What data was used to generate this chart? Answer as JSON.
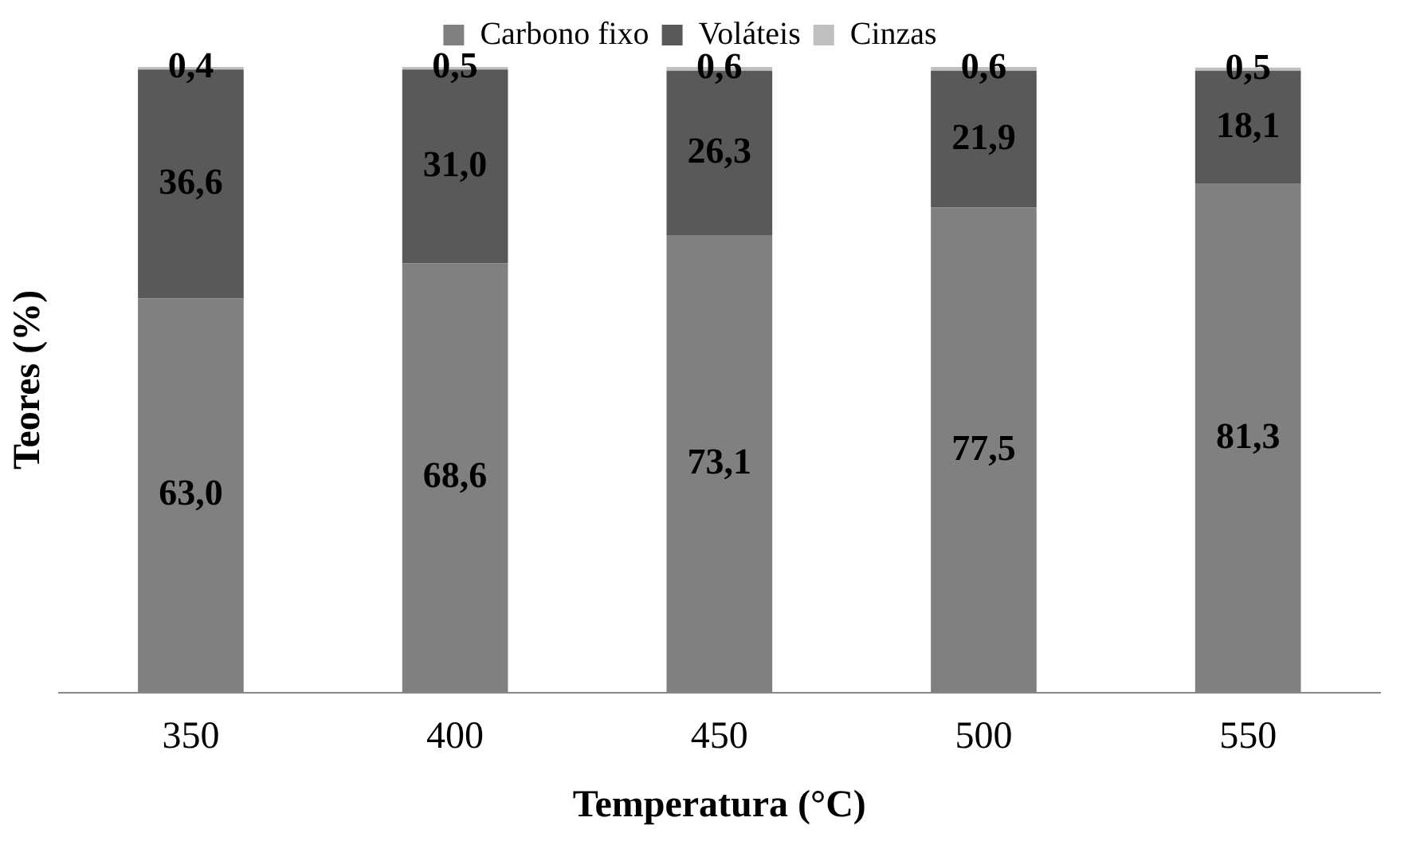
{
  "chart_data": {
    "type": "bar",
    "stacked": true,
    "xlabel": "Temperatura (°C)",
    "ylabel": "Teores (%)",
    "categories": [
      "350",
      "400",
      "450",
      "500",
      "550"
    ],
    "ylim": [
      0,
      100
    ],
    "tick_labels": "x",
    "grid": false,
    "legend": "top",
    "series": [
      {
        "name": "Carbono fixo",
        "color": "#808080",
        "values": [
          63.0,
          68.6,
          73.1,
          77.5,
          81.3
        ],
        "value_labels": [
          "63,0",
          "68,6",
          "73,1",
          "77,5",
          "81,3"
        ]
      },
      {
        "name": "Voláteis",
        "color": "#595959",
        "values": [
          36.6,
          31.0,
          26.3,
          21.9,
          18.1
        ],
        "value_labels": [
          "36,6",
          "31,0",
          "26,3",
          "21,9",
          "18,1"
        ]
      },
      {
        "name": "Cinzas",
        "color": "#bfbfbf",
        "values": [
          0.4,
          0.5,
          0.6,
          0.6,
          0.5
        ],
        "value_labels": [
          "0,4",
          "0,5",
          "0,6",
          "0,6",
          "0,5"
        ]
      }
    ]
  }
}
